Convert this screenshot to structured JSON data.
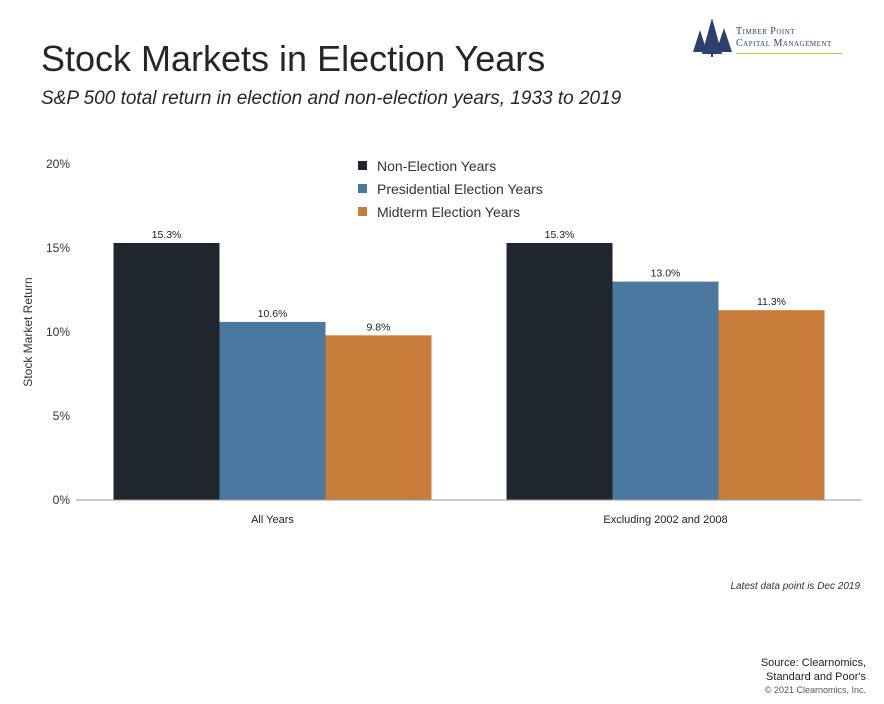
{
  "header": {
    "title": "Stock Markets in Election Years",
    "subtitle": "S&P 500 total return in election and non-election years, 1933 to 2019"
  },
  "logo": {
    "line1": "Timber Point",
    "line2": "Capital Management",
    "icon": "pine-trees-icon",
    "color": "#2e3f6e",
    "accent": "#b7c84a"
  },
  "chart_data": {
    "type": "bar",
    "title": "",
    "xlabel": "",
    "ylabel": "Stock Market Return",
    "categories": [
      "All Years",
      "Excluding 2002 and 2008"
    ],
    "ylim": [
      0,
      20
    ],
    "yticks": [
      0,
      5,
      10,
      15,
      20
    ],
    "ytick_labels": [
      "0%",
      "5%",
      "10%",
      "15%",
      "20%"
    ],
    "grid": false,
    "legend": "top-center",
    "series": [
      {
        "name": "Non-Election Years",
        "color": "#1f262d",
        "values": [
          15.3,
          15.3
        ],
        "labels": [
          "15.3%",
          "15.3%"
        ]
      },
      {
        "name": "Presidential Election Years",
        "color": "#4b789f",
        "values": [
          10.6,
          13.0
        ],
        "labels": [
          "10.6%",
          "13.0%"
        ]
      },
      {
        "name": "Midterm Election Years",
        "color": "#c97d3b",
        "values": [
          9.8,
          11.3
        ],
        "labels": [
          "9.8%",
          "11.3%"
        ]
      }
    ]
  },
  "footer": {
    "note": "Latest data point is Dec 2019",
    "source_line1": "Source: Clearnomics,",
    "source_line2": "Standard and Poor's",
    "copyright": "© 2021 Clearnomics, Inc."
  }
}
